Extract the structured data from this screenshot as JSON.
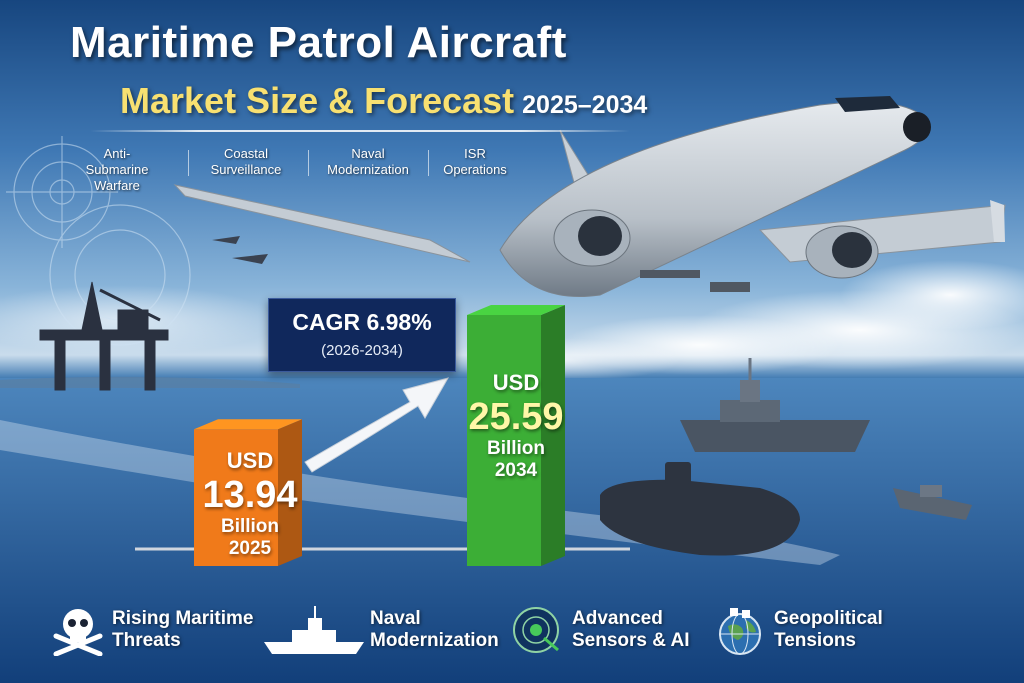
{
  "title": {
    "main": "Maritime Patrol Aircraft",
    "subtitle": "Market Size & Forecast",
    "years": "2025–2034"
  },
  "topics": [
    {
      "label": "Anti-\nSubmarine\nWarfare"
    },
    {
      "label": "Coastal\nSurveillance"
    },
    {
      "label": "Naval\nModernization"
    },
    {
      "label": "ISR\nOperations"
    }
  ],
  "cagr": {
    "value": "CAGR 6.98%",
    "period": "(2026-2034)"
  },
  "chart_data": {
    "type": "bar",
    "categories": [
      "2025",
      "2034"
    ],
    "values": [
      13.94,
      25.59
    ],
    "unit_prefix": "USD",
    "unit_suffix": "Billion",
    "labels": [
      "13.94",
      "25.59"
    ],
    "colors": [
      "#f07a1a",
      "#3cae36"
    ],
    "ylim": [
      0,
      30
    ],
    "grid": false,
    "title": "",
    "xlabel": "",
    "ylabel": ""
  },
  "footer": {
    "items": [
      {
        "label": "Rising Maritime\nThreats",
        "icon": "skull-crossbones-icon"
      },
      {
        "label": "Naval\nModernization",
        "icon": "warship-icon"
      },
      {
        "label": "Advanced\nSensors & AI",
        "icon": "radar-icon"
      },
      {
        "label": "Geopolitical\nTensions",
        "icon": "globe-icon"
      }
    ]
  },
  "colors": {
    "title_accent": "#f8e071",
    "cagr_box": "#10285c",
    "bar_2025": "#f07a1a",
    "bar_2034": "#3cae36"
  }
}
